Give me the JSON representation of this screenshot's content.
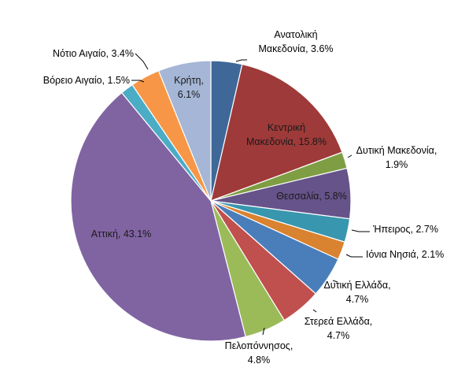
{
  "chart_data": {
    "type": "pie",
    "title": "",
    "start_angle_deg": 0,
    "direction": "clockwise",
    "legend": "none",
    "slices": [
      {
        "label": "Ανατολική Μακεδονία",
        "value": 3.6,
        "label_text": [
          "Ανατολική",
          "Μακεδονία, 3.6%"
        ],
        "color": "#3F6898"
      },
      {
        "label": "Κεντρική Μακεδονία",
        "value": 15.8,
        "label_text": [
          "Κεντρική",
          "Μακεδονία, 15.8%"
        ],
        "color": "#9E3A39"
      },
      {
        "label": "Δυτική Μακεδονία",
        "value": 1.9,
        "label_text": [
          "Δυτική Μακεδονία,",
          "1.9%"
        ],
        "color": "#7F9E44"
      },
      {
        "label": "Θεσσαλία",
        "value": 5.8,
        "label_text": [
          "Θεσσαλία, 5.8%"
        ],
        "color": "#66538A"
      },
      {
        "label": "Ήπειρος",
        "value": 2.7,
        "label_text": [
          "Ήπειρος, 2.7%"
        ],
        "color": "#3896AE"
      },
      {
        "label": "Ιόνια Νησιά",
        "value": 2.1,
        "label_text": [
          "Ιόνια Νησιά, 2.1%"
        ],
        "color": "#D9822F"
      },
      {
        "label": "Δυτική Ελλάδα",
        "value": 4.7,
        "label_text": [
          "Δυτική Ελλάδα,",
          "4.7%"
        ],
        "color": "#4A7EBB"
      },
      {
        "label": "Στερεά Ελλάδα",
        "value": 4.7,
        "label_text": [
          "Στερεά Ελλάδα,",
          "4.7%"
        ],
        "color": "#C0504D"
      },
      {
        "label": "Πελοπόννησος",
        "value": 4.8,
        "label_text": [
          "Πελοπόννησος,",
          "4.8%"
        ],
        "color": "#9BBB59"
      },
      {
        "label": "Αττική",
        "value": 43.1,
        "label_text": [
          "Αττική, 43.1%"
        ],
        "color": "#8064A2"
      },
      {
        "label": "Βόρειο Αιγαίο",
        "value": 1.5,
        "label_text": [
          "Βόρειο Αιγαίο, 1.5%"
        ],
        "color": "#4BACC6"
      },
      {
        "label": "Νότιο Αιγαίο",
        "value": 3.4,
        "label_text": [
          "Νότιο Αιγαίο, 3.4%"
        ],
        "color": "#F79646"
      },
      {
        "label": "Κρήτη",
        "value": 6.1,
        "label_text": [
          "Κρήτη,",
          "6.1%"
        ],
        "color": "#A5B6D6"
      }
    ]
  }
}
